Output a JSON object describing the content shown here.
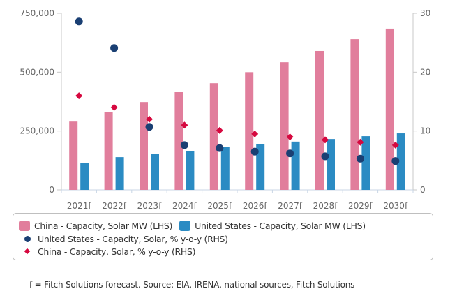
{
  "chart_data": {
    "type": "bar",
    "title": "",
    "categories": [
      "2021f",
      "2022f",
      "2023f",
      "2024f",
      "2025f",
      "2026f",
      "2027f",
      "2028f",
      "2029f",
      "2030f"
    ],
    "left_axis": {
      "ylim": [
        0,
        750000
      ],
      "ticks": [
        0,
        250000,
        500000,
        750000
      ],
      "tick_labels": [
        "0",
        "250,000",
        "500,000",
        "750,000"
      ]
    },
    "right_axis": {
      "ylim": [
        0,
        30
      ],
      "ticks": [
        0,
        10,
        20,
        30
      ],
      "tick_labels": [
        "0",
        "10",
        "20",
        "30"
      ]
    },
    "grid": false,
    "legend_position": "bottom",
    "series": [
      {
        "name": "China - Capacity, Solar MW (LHS)",
        "type": "bar",
        "axis": "left",
        "color": "#e17e9c",
        "values": [
          290000,
          332000,
          373000,
          415000,
          453000,
          500000,
          542000,
          590000,
          640000,
          685000
        ]
      },
      {
        "name": "United States - Capacity, Solar MW (LHS)",
        "type": "bar",
        "axis": "left",
        "color": "#2b8bc3",
        "values": [
          113000,
          139000,
          154000,
          166000,
          181000,
          193000,
          205000,
          216000,
          228000,
          240000
        ]
      },
      {
        "name": "United States - Capacity, Solar, % y-o-y (RHS)",
        "type": "scatter",
        "marker": "circle",
        "axis": "right",
        "color": "#1a3f73",
        "values": [
          28.6,
          24.1,
          10.7,
          7.6,
          7.1,
          6.5,
          6.2,
          5.7,
          5.3,
          4.9
        ]
      },
      {
        "name": "China - Capacity, Solar, % y-o-y (RHS)",
        "type": "scatter",
        "marker": "diamond",
        "axis": "right",
        "color": "#d6083f",
        "values": [
          16.0,
          14.0,
          12.0,
          11.0,
          10.1,
          9.5,
          9.0,
          8.5,
          8.1,
          7.6
        ]
      }
    ]
  },
  "legend": {
    "items": [
      {
        "label": "China - Capacity, Solar MW (LHS)",
        "color": "#e17e9c"
      },
      {
        "label": "United States - Capacity, Solar MW (LHS)",
        "color": "#2b8bc3"
      },
      {
        "label": "United States - Capacity, Solar, % y-o-y (RHS)",
        "color": "#1a3f73"
      },
      {
        "label": "China - Capacity, Solar, % y-o-y (RHS)",
        "color": "#d6083f"
      }
    ]
  },
  "footnote": "f = Fitch Solutions forecast. Source: EIA, IRENA, national sources, Fitch Solutions"
}
